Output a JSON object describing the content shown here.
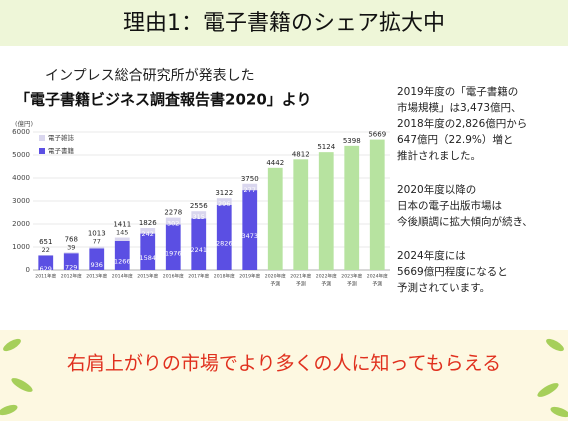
{
  "header": {
    "title": "理由1：電子書籍のシェア拡大中"
  },
  "chart_heading": [
    "インプレス総合研究所が発表した",
    "「電子書籍ビジネス調査報告書2020」より"
  ],
  "chart_data": {
    "type": "bar",
    "y_label": "(億円)",
    "categories": [
      "2011年度",
      "2012年度",
      "2013年度",
      "2014年度",
      "2015年度",
      "2016年度",
      "2017年度",
      "2018年度",
      "2019年度",
      "2020年度",
      "2021年度",
      "2022年度",
      "2023年度",
      "2024年度"
    ],
    "category_notes": [
      null,
      null,
      null,
      null,
      null,
      null,
      null,
      null,
      null,
      "予測",
      "予測",
      "予測",
      "予測",
      "予測"
    ],
    "series": [
      {
        "name": "電子書籍",
        "color": "#5b4fe3",
        "values": [
          629,
          729,
          936,
          1266,
          1584,
          1976,
          2241,
          2826,
          3473,
          null,
          null,
          null,
          null,
          null
        ]
      },
      {
        "name": "電子雑誌",
        "color": "#d9d6ee",
        "values": [
          22,
          39,
          77,
          145,
          242,
          302,
          315,
          296,
          277,
          null,
          null,
          null,
          null,
          null
        ]
      },
      {
        "color": "#b7e3a0",
        "values": [
          null,
          null,
          null,
          null,
          null,
          null,
          null,
          null,
          null,
          4442,
          4812,
          5124,
          5398,
          5669
        ]
      }
    ],
    "totals": [
      651,
      768,
      1013,
      1411,
      1826,
      2278,
      2556,
      3122,
      3750,
      null,
      null,
      null,
      null,
      null
    ],
    "ylim": [
      0,
      6000
    ],
    "yticks": [
      0,
      1000,
      2000,
      3000,
      4000,
      5000,
      6000
    ],
    "legend": "top-left"
  },
  "notes": [
    [
      "2019年度の「電子書籍の",
      "市場規模」は3,473億円、",
      "2018年度の2,826億円から",
      "647億円（22.9%）増と",
      "推計されました。"
    ],
    [
      "2020年度以降の",
      "日本の電子出版市場は",
      "今後順調に拡大傾向が続き、"
    ],
    [
      "2024年度には",
      "5669億円程度になると",
      "予測されています。"
    ]
  ],
  "footer": "右肩上がりの市場でより多くの人に知ってもらえる"
}
